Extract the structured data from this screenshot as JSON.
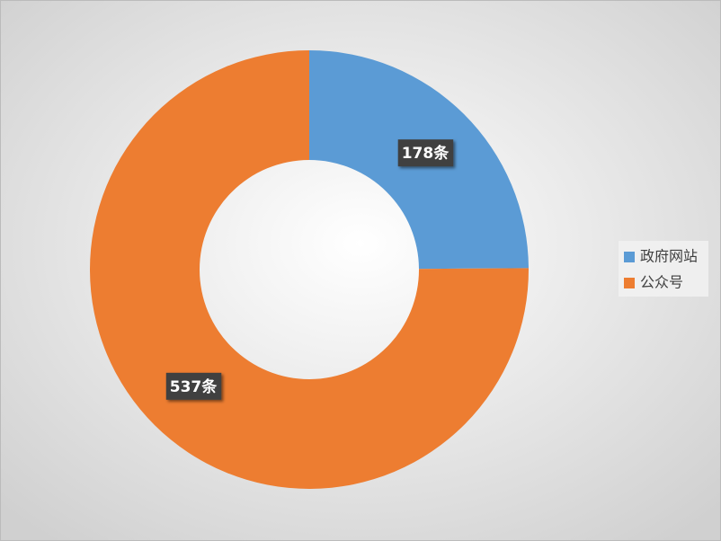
{
  "chart_data": {
    "type": "doughnut",
    "categories": [
      "政府网站",
      "公众号"
    ],
    "values": [
      178,
      537
    ],
    "value_labels": [
      "178条",
      "537条"
    ],
    "colors": [
      "#5b9bd5",
      "#ed7d31"
    ],
    "legend": "right"
  }
}
